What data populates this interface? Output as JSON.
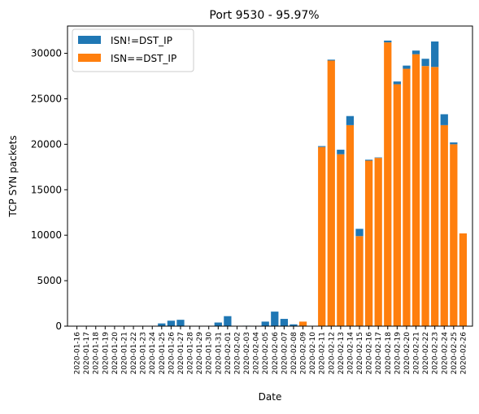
{
  "chart_data": {
    "type": "bar",
    "stacked": true,
    "title": "Port 9530 - 95.97%",
    "xlabel": "Date",
    "ylabel": "TCP SYN packets",
    "ylim": [
      0,
      33000
    ],
    "yticks": [
      0,
      5000,
      10000,
      15000,
      20000,
      25000,
      30000
    ],
    "legend_position": "upper-left",
    "grid": false,
    "categories": [
      "2020-01-16",
      "2020-01-17",
      "2020-01-18",
      "2020-01-19",
      "2020-01-20",
      "2020-01-21",
      "2020-01-22",
      "2020-01-23",
      "2020-01-24",
      "2020-01-25",
      "2020-01-26",
      "2020-01-27",
      "2020-01-28",
      "2020-01-29",
      "2020-01-30",
      "2020-01-31",
      "2020-02-01",
      "2020-02-02",
      "2020-02-03",
      "2020-02-04",
      "2020-02-05",
      "2020-02-06",
      "2020-02-07",
      "2020-02-08",
      "2020-02-09",
      "2020-02-10",
      "2020-02-11",
      "2020-02-12",
      "2020-02-13",
      "2020-02-14",
      "2020-02-15",
      "2020-02-16",
      "2020-02-17",
      "2020-02-18",
      "2020-02-19",
      "2020-02-20",
      "2020-02-21",
      "2020-02-22",
      "2020-02-23",
      "2020-02-24",
      "2020-02-25",
      "2020-02-26"
    ],
    "series": [
      {
        "name": "ISN!=DST_IP",
        "color": "#1f77b4",
        "values": [
          0,
          0,
          0,
          0,
          0,
          0,
          0,
          0,
          0,
          300,
          600,
          700,
          0,
          0,
          0,
          400,
          1100,
          0,
          50,
          0,
          500,
          1600,
          800,
          200,
          0,
          0,
          100,
          100,
          500,
          1000,
          800,
          100,
          50,
          200,
          300,
          350,
          400,
          800,
          2800,
          1200,
          200,
          0
        ]
      },
      {
        "name": "ISN==DST_IP",
        "color": "#ff7f0e",
        "values": [
          0,
          0,
          0,
          0,
          0,
          0,
          0,
          0,
          0,
          0,
          0,
          0,
          0,
          0,
          0,
          0,
          0,
          0,
          0,
          0,
          0,
          0,
          0,
          0,
          500,
          0,
          19700,
          29200,
          18900,
          22100,
          9900,
          18200,
          18500,
          31200,
          26600,
          28300,
          29900,
          28600,
          28500,
          22100,
          20000,
          10200
        ]
      }
    ]
  }
}
